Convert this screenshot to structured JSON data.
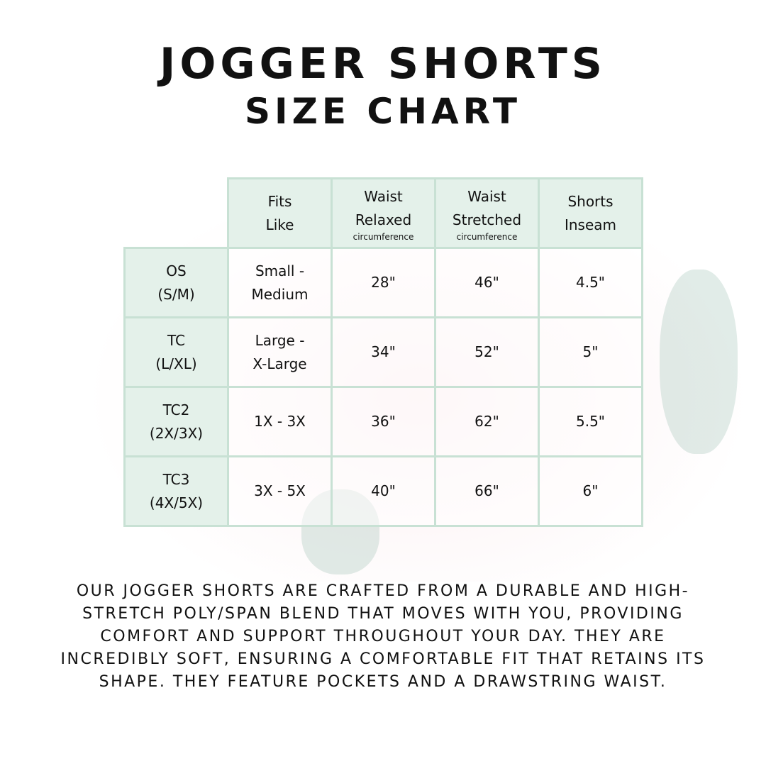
{
  "title": {
    "line1": "JOGGER SHORTS",
    "line2": "SIZE CHART"
  },
  "table": {
    "headers": [
      {
        "label": "Fits\nLike",
        "sub": ""
      },
      {
        "label": "Waist\nRelaxed",
        "sub": "circumference"
      },
      {
        "label": "Waist\nStretched",
        "sub": "circumference"
      },
      {
        "label": "Shorts\nInseam",
        "sub": ""
      }
    ],
    "rows": [
      {
        "size": "OS\n(S/M)",
        "fits": "Small -\nMedium",
        "relaxed": "28\"",
        "stretched": "46\"",
        "inseam": "4.5\""
      },
      {
        "size": "TC\n(L/XL)",
        "fits": "Large -\nX-Large",
        "relaxed": "34\"",
        "stretched": "52\"",
        "inseam": "5\""
      },
      {
        "size": "TC2\n(2X/3X)",
        "fits": "1X - 3X",
        "relaxed": "36\"",
        "stretched": "62\"",
        "inseam": "5.5\""
      },
      {
        "size": "TC3\n(4X/5X)",
        "fits": "3X - 5X",
        "relaxed": "40\"",
        "stretched": "66\"",
        "inseam": "6\""
      }
    ]
  },
  "description": "Our jogger shorts are crafted from a durable and high-stretch poly/span blend that moves with you, providing comfort and support throughout your day. They are incredibly soft, ensuring a comfortable fit that retains its shape. They feature pockets and a drawstring waist.",
  "colors": {
    "header_bg": "#e3f0e9",
    "border": "#c8e1d4"
  }
}
